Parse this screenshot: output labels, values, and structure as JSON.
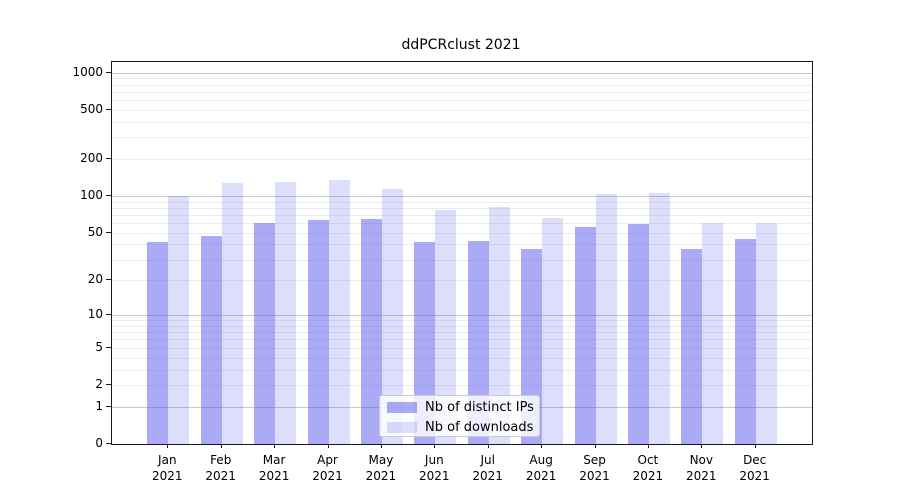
{
  "chart_data": {
    "type": "bar",
    "title": "ddPCRclust 2021",
    "categories": [
      "Jan",
      "Feb",
      "Mar",
      "Apr",
      "May",
      "Jun",
      "Jul",
      "Aug",
      "Sep",
      "Oct",
      "Nov",
      "Dec"
    ],
    "category_year": "2021",
    "series": [
      {
        "name": "Nb of distinct IPs",
        "color": "rgba(85,85,240,0.5)",
        "values": [
          42,
          47,
          60,
          64,
          65,
          42,
          43,
          37,
          56,
          59,
          37,
          44
        ]
      },
      {
        "name": "Nb of downloads",
        "color": "rgba(85,85,240,0.2)",
        "values": [
          100,
          127,
          130,
          134,
          114,
          77,
          81,
          66,
          103,
          106,
          60,
          60
        ]
      }
    ],
    "xlabel": "",
    "ylabel": "",
    "y_scale": "log10(1+v)",
    "y_ticks": [
      0,
      1,
      2,
      5,
      10,
      20,
      50,
      100,
      200,
      500,
      1000
    ],
    "ylim": [
      0,
      1230
    ],
    "grid": {
      "major_at": [
        1,
        10,
        100,
        1000
      ],
      "minor_multipliers": [
        2,
        3,
        4,
        5,
        6,
        7,
        8,
        9
      ],
      "minor_decades": [
        1,
        10,
        100
      ],
      "major_color": "#c8c8c8",
      "minor_color": "#ececec"
    },
    "legend": {
      "position": "lower center"
    }
  },
  "colors": {
    "background": "#ffffff",
    "axis": "#1a1a1a",
    "text": "#000000"
  }
}
